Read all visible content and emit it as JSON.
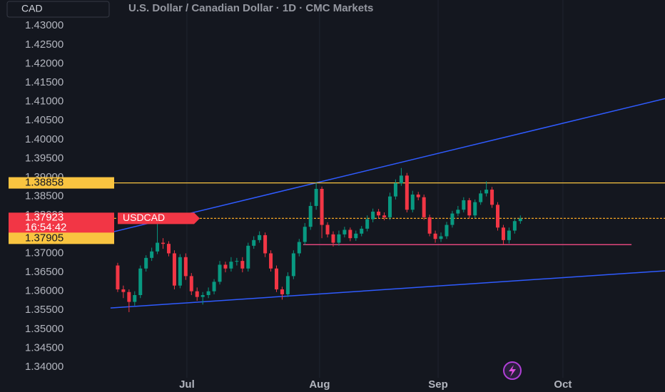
{
  "chart_data": {
    "type": "candlestick",
    "currency": "CAD",
    "title": "U.S. Dollar / Canadian Dollar · 1D · CMC Markets",
    "symbol": "USDCAD",
    "countdown": "16:54:42",
    "up_color": "#089981",
    "down_color": "#f23645",
    "ylim": [
      1.3372,
      1.4368
    ],
    "xlim": [
      -20.75,
      96.5
    ],
    "yticks": [
      {
        "value": 1.34,
        "label": "1.34000"
      },
      {
        "value": 1.345,
        "label": "1.34500"
      },
      {
        "value": 1.35,
        "label": "1.35000"
      },
      {
        "value": 1.355,
        "label": "1.35500"
      },
      {
        "value": 1.36,
        "label": "1.36000"
      },
      {
        "value": 1.365,
        "label": "1.36500"
      },
      {
        "value": 1.37,
        "label": "1.37000"
      },
      {
        "value": 1.375,
        "label": "1.37500"
      },
      {
        "value": 1.38,
        "label": "1.38000"
      },
      {
        "value": 1.385,
        "label": "1.38500"
      },
      {
        "value": 1.39,
        "label": "1.39000"
      },
      {
        "value": 1.395,
        "label": "1.39500"
      },
      {
        "value": 1.4,
        "label": "1.40000"
      },
      {
        "value": 1.405,
        "label": "1.40500"
      },
      {
        "value": 1.41,
        "label": "1.41000"
      },
      {
        "value": 1.415,
        "label": "1.41500"
      },
      {
        "value": 1.42,
        "label": "1.42000"
      },
      {
        "value": 1.425,
        "label": "1.42500"
      },
      {
        "value": 1.43,
        "label": "1.43000"
      }
    ],
    "xticks": [
      {
        "value": 12.2,
        "label": "Jul"
      },
      {
        "value": 35.6,
        "label": "Aug"
      },
      {
        "value": 56.5,
        "label": "Sep"
      },
      {
        "value": 78.5,
        "label": "Oct"
      }
    ],
    "grid_x": true,
    "open": [
      1.3668,
      1.3605,
      1.3598,
      1.3572,
      1.359,
      1.366,
      1.3688,
      1.3705,
      1.3728,
      1.3725,
      1.37,
      1.3615,
      1.369,
      1.364,
      1.36,
      1.3585,
      1.359,
      1.36,
      1.3625,
      1.367,
      1.366,
      1.3678,
      1.368,
      1.366,
      1.372,
      1.3735,
      1.3748,
      1.37,
      1.366,
      1.3605,
      1.3592,
      1.364,
      1.37,
      1.373,
      1.377,
      1.3825,
      1.387,
      1.3775,
      1.375,
      1.3728,
      1.375,
      1.3762,
      1.374,
      1.3752,
      1.3765,
      1.379,
      1.381,
      1.38,
      1.3795,
      1.385,
      1.3885,
      1.3905,
      1.3815,
      1.3855,
      1.3848,
      1.3795,
      1.3752,
      1.3738,
      1.3745,
      1.3775,
      1.3805,
      1.3815,
      1.384,
      1.38,
      1.3835,
      1.3858,
      1.3868,
      1.3828,
      1.3768,
      1.3735,
      1.376,
      1.3785
    ],
    "high": [
      1.3675,
      1.3615,
      1.3605,
      1.36,
      1.3668,
      1.3695,
      1.3715,
      1.3795,
      1.374,
      1.3732,
      1.3708,
      1.3698,
      1.37,
      1.3648,
      1.361,
      1.3598,
      1.361,
      1.3632,
      1.368,
      1.3678,
      1.369,
      1.3688,
      1.369,
      1.3728,
      1.3745,
      1.3758,
      1.3755,
      1.3708,
      1.3668,
      1.3612,
      1.365,
      1.3708,
      1.3738,
      1.378,
      1.3835,
      1.3886,
      1.3876,
      1.3782,
      1.3758,
      1.376,
      1.377,
      1.3768,
      1.376,
      1.3772,
      1.38,
      1.3818,
      1.3817,
      1.3808,
      1.386,
      1.3895,
      1.3925,
      1.3912,
      1.3865,
      1.3862,
      1.3855,
      1.3802,
      1.376,
      1.3755,
      1.3783,
      1.3812,
      1.3825,
      1.3848,
      1.3846,
      1.3842,
      1.3866,
      1.389,
      1.3875,
      1.3835,
      1.3775,
      1.3768,
      1.3792,
      1.38
    ],
    "low": [
      1.3598,
      1.3582,
      1.3545,
      1.3562,
      1.3582,
      1.3652,
      1.368,
      1.3698,
      1.3712,
      1.3692,
      1.3605,
      1.3608,
      1.363,
      1.359,
      1.3575,
      1.3565,
      1.3582,
      1.3592,
      1.3618,
      1.365,
      1.3652,
      1.3668,
      1.365,
      1.3652,
      1.3712,
      1.3728,
      1.369,
      1.3652,
      1.3598,
      1.3578,
      1.3585,
      1.3632,
      1.3692,
      1.3722,
      1.3762,
      1.3815,
      1.374,
      1.3742,
      1.3718,
      1.372,
      1.3742,
      1.3732,
      1.3733,
      1.3745,
      1.3758,
      1.3782,
      1.3792,
      1.3787,
      1.3788,
      1.3842,
      1.3878,
      1.3808,
      1.3808,
      1.384,
      1.3788,
      1.3745,
      1.3728,
      1.373,
      1.3738,
      1.3768,
      1.3798,
      1.3808,
      1.3792,
      1.3793,
      1.3828,
      1.385,
      1.382,
      1.376,
      1.3722,
      1.3726,
      1.3752,
      1.3778
    ],
    "close": [
      1.3605,
      1.3598,
      1.3572,
      1.359,
      1.366,
      1.3688,
      1.3705,
      1.3728,
      1.3725,
      1.37,
      1.3615,
      1.369,
      1.364,
      1.36,
      1.3585,
      1.359,
      1.36,
      1.3625,
      1.367,
      1.366,
      1.3678,
      1.368,
      1.366,
      1.372,
      1.3735,
      1.3748,
      1.37,
      1.366,
      1.3605,
      1.3592,
      1.364,
      1.37,
      1.373,
      1.377,
      1.3825,
      1.387,
      1.3775,
      1.375,
      1.3728,
      1.375,
      1.3762,
      1.374,
      1.3752,
      1.3765,
      1.379,
      1.381,
      1.38,
      1.3795,
      1.385,
      1.3885,
      1.3905,
      1.3815,
      1.3855,
      1.3848,
      1.3795,
      1.3752,
      1.3738,
      1.3745,
      1.3775,
      1.3805,
      1.3815,
      1.384,
      1.38,
      1.3835,
      1.3858,
      1.3868,
      1.3828,
      1.3768,
      1.3735,
      1.376,
      1.3785,
      1.3792
    ],
    "price_lines": [
      {
        "value": 1.38858,
        "color": "#f9c440"
      },
      {
        "value": 1.37923,
        "color": "#f23645"
      },
      {
        "value": 1.37905,
        "color": "#f9c440"
      }
    ],
    "trend_lines": [
      {
        "color": "#2f5bff",
        "points": [
          {
            "x": -1.26,
            "y": 1.3755
          },
          {
            "x": 96.5,
            "y": 1.4108
          }
        ]
      },
      {
        "color": "#2f5bff",
        "points": [
          {
            "x": -1.26,
            "y": 1.3556
          },
          {
            "x": 96.5,
            "y": 1.3654
          }
        ]
      },
      {
        "color": "#e0457b",
        "points": [
          {
            "x": 32.7,
            "y": 1.3723
          },
          {
            "x": 90.6,
            "y": 1.3723
          }
        ]
      }
    ]
  }
}
